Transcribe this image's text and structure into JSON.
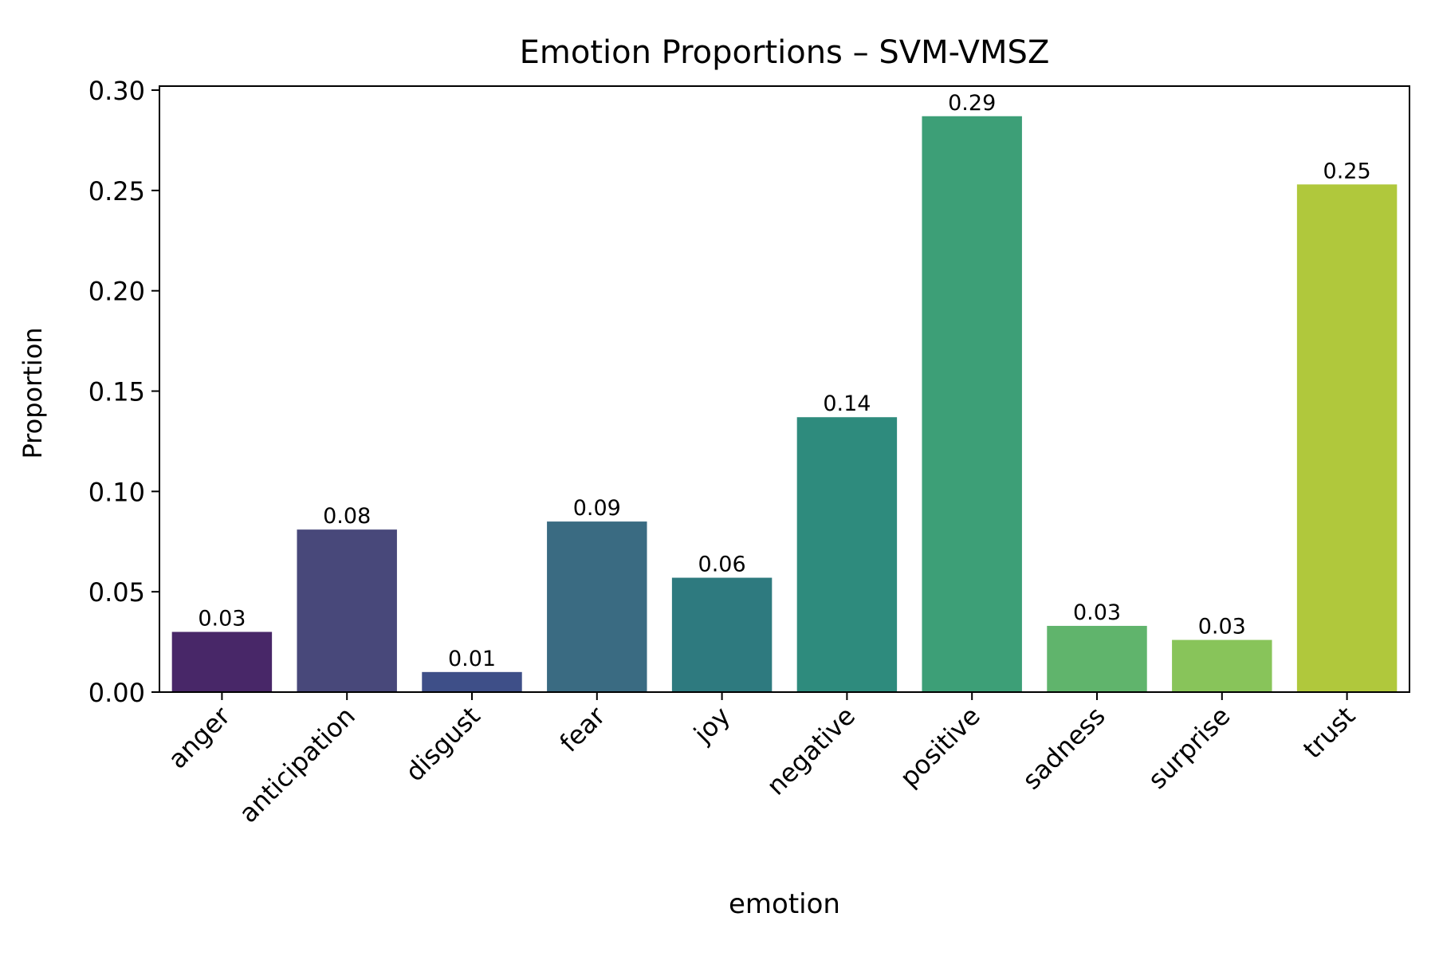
{
  "chart_data": {
    "type": "bar",
    "title": "Emotion Proportions – SVM-VMSZ",
    "xlabel": "emotion",
    "ylabel": "Proportion",
    "ylim": [
      0,
      0.302
    ],
    "yticks": [
      0.0,
      0.05,
      0.1,
      0.15,
      0.2,
      0.25,
      0.3
    ],
    "ytick_labels": [
      "0.00",
      "0.05",
      "0.10",
      "0.15",
      "0.20",
      "0.25",
      "0.30"
    ],
    "grid": false,
    "categories": [
      "anger",
      "anticipation",
      "disgust",
      "fear",
      "joy",
      "negative",
      "positive",
      "sadness",
      "surprise",
      "trust"
    ],
    "values": [
      0.03,
      0.081,
      0.01,
      0.085,
      0.057,
      0.137,
      0.287,
      0.033,
      0.026,
      0.253
    ],
    "value_labels": [
      "0.03",
      "0.08",
      "0.01",
      "0.09",
      "0.06",
      "0.14",
      "0.29",
      "0.03",
      "0.03",
      "0.25"
    ],
    "colors": [
      "#482768",
      "#48487a",
      "#3e4f88",
      "#3a6b82",
      "#2e7a7f",
      "#2e8b7d",
      "#3d9f77",
      "#60b46c",
      "#88c45a",
      "#b0c83c"
    ]
  }
}
